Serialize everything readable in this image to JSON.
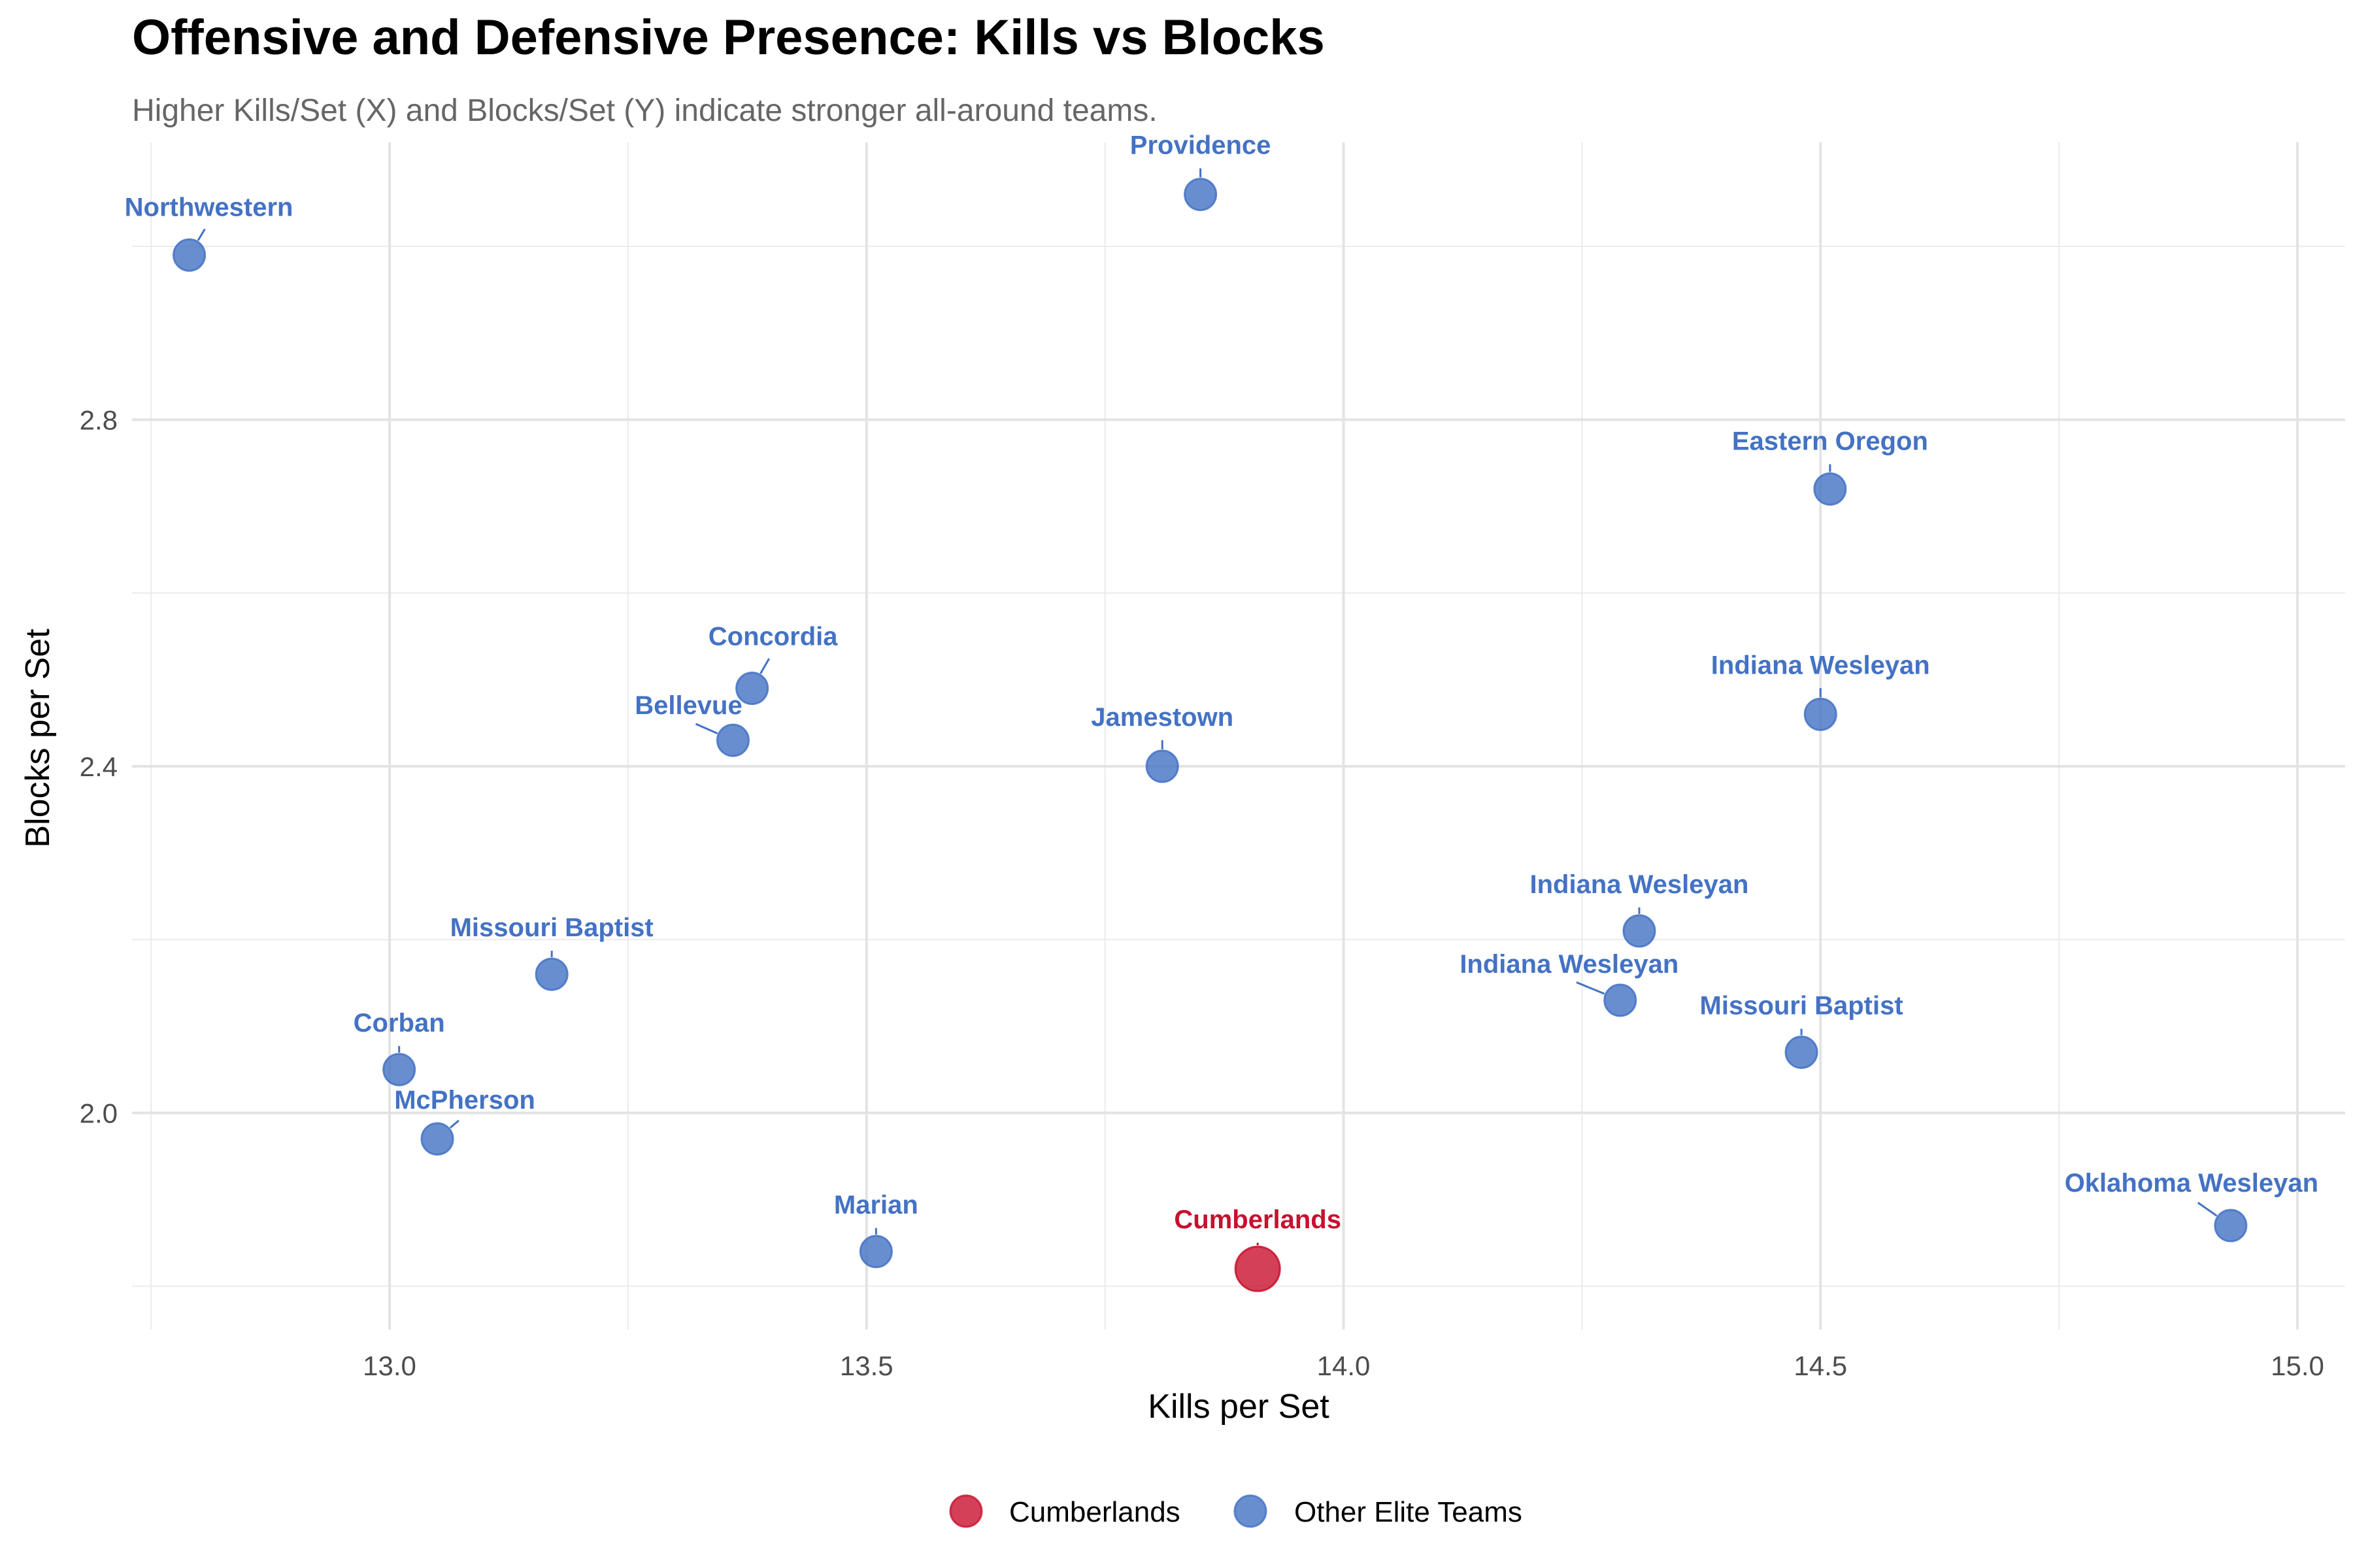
{
  "chart_data": {
    "type": "scatter",
    "title": "Offensive and Defensive Presence: Kills vs Blocks",
    "subtitle": "Higher Kills/Set (X) and Blocks/Set (Y) indicate stronger all-around teams.",
    "xlabel": "Kills per Set",
    "ylabel": "Blocks per Set",
    "xlim": [
      12.73,
      15.05
    ],
    "ylim": [
      1.75,
      3.12
    ],
    "xticks": [
      13.0,
      13.5,
      14.0,
      14.5,
      15.0
    ],
    "xtick_labels": [
      "13.0",
      "13.5",
      "14.0",
      "14.5",
      "15.0"
    ],
    "yticks": [
      2.0,
      2.4,
      2.8
    ],
    "ytick_labels": [
      "2.0",
      "2.4",
      "2.8"
    ],
    "grid": true,
    "legend_position": "bottom",
    "colors": {
      "Cumberlands": "#C8102E",
      "Other Elite Teams": "#4472C4"
    },
    "series": [
      {
        "name": "Cumberlands",
        "points": [
          {
            "label": "Cumberlands",
            "x": 13.91,
            "y": 1.82
          }
        ]
      },
      {
        "name": "Other Elite Teams",
        "points": [
          {
            "label": "Northwestern",
            "x": 12.79,
            "y": 2.99
          },
          {
            "label": "Providence",
            "x": 13.85,
            "y": 3.06
          },
          {
            "label": "Eastern Oregon",
            "x": 14.51,
            "y": 2.72
          },
          {
            "label": "Concordia",
            "x": 13.38,
            "y": 2.49
          },
          {
            "label": "Bellevue",
            "x": 13.36,
            "y": 2.43
          },
          {
            "label": "Jamestown",
            "x": 13.81,
            "y": 2.4
          },
          {
            "label": "Indiana Wesleyan",
            "x": 14.5,
            "y": 2.46
          },
          {
            "label": "Indiana Wesleyan",
            "x": 14.31,
            "y": 2.21
          },
          {
            "label": "Indiana Wesleyan",
            "x": 14.29,
            "y": 2.13
          },
          {
            "label": "Missouri Baptist",
            "x": 13.17,
            "y": 2.16
          },
          {
            "label": "Missouri Baptist",
            "x": 14.48,
            "y": 2.07
          },
          {
            "label": "Corban",
            "x": 13.01,
            "y": 2.05
          },
          {
            "label": "McPherson",
            "x": 13.05,
            "y": 1.97
          },
          {
            "label": "Marian",
            "x": 13.51,
            "y": 1.84
          },
          {
            "label": "Oklahoma Wesleyan",
            "x": 14.93,
            "y": 1.87
          }
        ]
      }
    ]
  }
}
